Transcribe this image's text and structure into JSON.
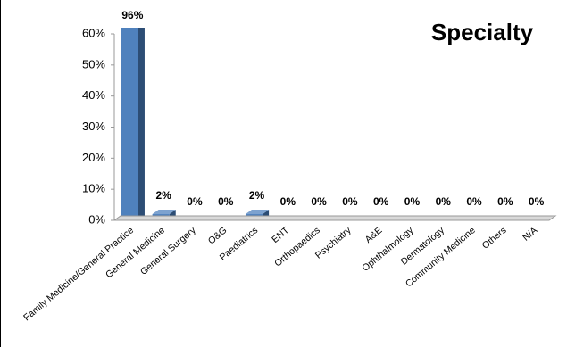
{
  "chart_data": {
    "type": "bar",
    "title": "Specialty",
    "categories": [
      "Family Medicine/General Practice",
      "General Medicine",
      "General Surgery",
      "O&G",
      "Paediatrics",
      "ENT",
      "Orthopaedics",
      "Psychiatry",
      "A&E",
      "Ophthalmology",
      "Dermatology",
      "Community Medicine",
      "Others",
      "N/A"
    ],
    "values": [
      96,
      2,
      0,
      0,
      2,
      0,
      0,
      0,
      0,
      0,
      0,
      0,
      0,
      0
    ],
    "value_labels": [
      "96%",
      "2%",
      "0%",
      "0%",
      "2%",
      "0%",
      "0%",
      "0%",
      "0%",
      "0%",
      "0%",
      "0%",
      "0%",
      "0%"
    ],
    "color": "#4f81bd",
    "ylim": [
      0,
      60
    ],
    "yticks": [
      {
        "value": 0,
        "label": "0%"
      },
      {
        "value": 10,
        "label": "10%"
      },
      {
        "value": 20,
        "label": "20%"
      },
      {
        "value": 30,
        "label": "30%"
      },
      {
        "value": 40,
        "label": "40%"
      },
      {
        "value": 50,
        "label": "50%"
      },
      {
        "value": 60,
        "label": "60%"
      }
    ],
    "grid": false
  }
}
